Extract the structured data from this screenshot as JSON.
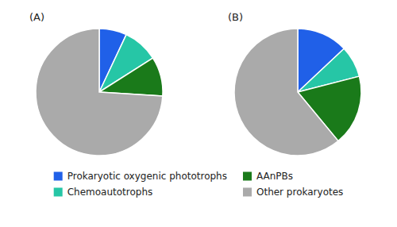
{
  "chart_data": [
    {
      "type": "pie",
      "title": "(A)",
      "categories": [
        "Prokaryotic oxygenic phototrophs",
        "Chemoautotrophs",
        "AAnPBs",
        "Other prokaryotes"
      ],
      "values": [
        7,
        9,
        10,
        74
      ],
      "colors": [
        "#2060e8",
        "#26c6a6",
        "#1a7a1a",
        "#aaaaaa"
      ],
      "legend": "bottom"
    },
    {
      "type": "pie",
      "title": "(B)",
      "categories": [
        "Prokaryotic oxygenic phototrophs",
        "Chemoautotrophs",
        "AAnPBs",
        "Other prokaryotes"
      ],
      "values": [
        13,
        8,
        18,
        61
      ],
      "colors": [
        "#2060e8",
        "#26c6a6",
        "#1a7a1a",
        "#aaaaaa"
      ]
    }
  ]
}
